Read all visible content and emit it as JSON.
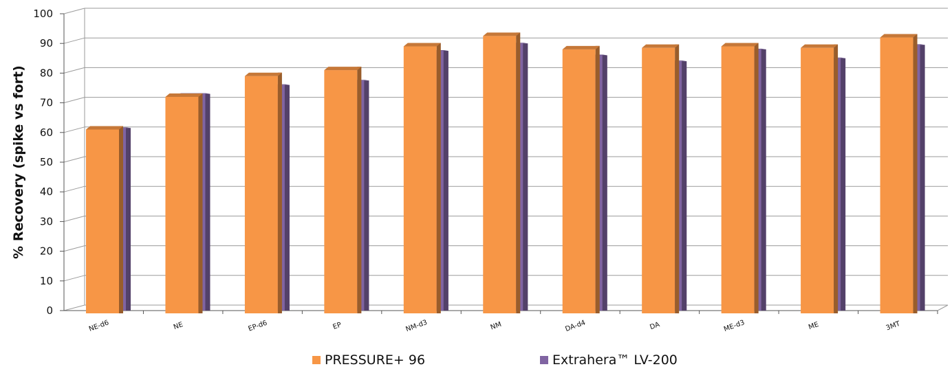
{
  "chart_data": {
    "type": "bar",
    "ylabel": "% Recovery (spike vs fort)",
    "xlabel": "",
    "ylim": [
      0,
      100
    ],
    "yticks": [
      0,
      10,
      20,
      30,
      40,
      50,
      60,
      70,
      80,
      90,
      100
    ],
    "grid": true,
    "legend_position": "bottom",
    "categories": [
      "NE-d6",
      "NE",
      "EP-d6",
      "EP",
      "NM-d3",
      "NM",
      "DA-d4",
      "DA",
      "ME-d3",
      "ME",
      "3MT"
    ],
    "series": [
      {
        "name": "PRESSURE+ 96",
        "color": "#F79646",
        "values": [
          61,
          72,
          79,
          81,
          89,
          92.5,
          88,
          88.5,
          89,
          88.5,
          92
        ]
      },
      {
        "name": "Extrahera™ LV-200",
        "color": "#8064A2",
        "values": [
          61.5,
          73,
          76,
          77.5,
          87.5,
          90,
          86,
          84,
          88,
          85,
          89.5
        ]
      }
    ]
  }
}
